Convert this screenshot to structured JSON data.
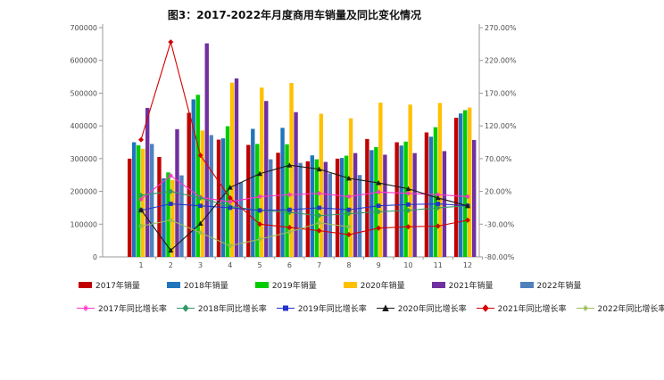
{
  "page": {
    "title": "图3：2017-2022年月度商用车销量及同比变化情况"
  },
  "chart_data": {
    "type": "combo-bar-line",
    "title": "图3：2017-2022年月度商用车销量及同比变化情况",
    "categories": [
      "1",
      "2",
      "3",
      "4",
      "5",
      "6",
      "7",
      "8",
      "9",
      "10",
      "11",
      "12"
    ],
    "left_axis": {
      "min": 0,
      "max": 700000,
      "step": 100000,
      "tick_labels": [
        "0",
        "100000",
        "200000",
        "300000",
        "400000",
        "500000",
        "600000",
        "700000"
      ]
    },
    "right_axis": {
      "min": -80,
      "max": 270,
      "step": 50,
      "tick_labels": [
        "-80.00%",
        "-30.00%",
        "20.00%",
        "70.00%",
        "120.00%",
        "170.00%",
        "220.00%",
        "270.00%"
      ]
    },
    "grid": "off",
    "legend_position": "bottom",
    "bar_series": [
      {
        "name": "2017年销量",
        "color": "#C00000",
        "values": [
          300000,
          305000,
          440000,
          358000,
          342000,
          318000,
          292000,
          300000,
          360000,
          350000,
          380000,
          425000
        ]
      },
      {
        "name": "2018年销量",
        "color": "#2076BC",
        "values": [
          350000,
          240000,
          481000,
          362000,
          391000,
          394000,
          310000,
          302000,
          326000,
          340000,
          367000,
          438000
        ]
      },
      {
        "name": "2019年销量",
        "color": "#00CC00",
        "values": [
          341000,
          258000,
          495000,
          399000,
          345000,
          344000,
          298000,
          309000,
          335000,
          352000,
          396000,
          448000
        ]
      },
      {
        "name": "2020年销量",
        "color": "#FFC000",
        "values": [
          330000,
          235000,
          386000,
          532000,
          517000,
          531000,
          437000,
          423000,
          471000,
          465000,
          470000,
          456000
        ]
      },
      {
        "name": "2021年销量",
        "color": "#7030A0",
        "values": [
          455000,
          390000,
          652000,
          545000,
          476000,
          442000,
          290000,
          317000,
          312000,
          317000,
          323000,
          357000
        ]
      },
      {
        "name": "2022年销量",
        "color": "#4F81BD",
        "values": [
          345000,
          249000,
          372000,
          228000,
          298000,
          287000,
          255000,
          250000,
          null,
          null,
          null,
          null
        ]
      }
    ],
    "line_series": [
      {
        "name": "2017年同比增长率",
        "color": "#FF33CC",
        "marker": "star",
        "values": [
          8,
          44,
          11,
          4,
          12,
          15,
          17,
          12,
          19,
          17,
          15,
          12
        ]
      },
      {
        "name": "2018年同比增长率",
        "color": "#339966",
        "marker": "diamond",
        "values": [
          14,
          20,
          10,
          -3,
          -9,
          -12,
          -17,
          -14,
          -11,
          -9,
          -5,
          -2
        ]
      },
      {
        "name": "2019年同比增长率",
        "color": "#2233CC",
        "marker": "square",
        "values": [
          -9,
          1,
          -2,
          -5,
          -9,
          -8,
          -5,
          -8,
          -2,
          0,
          1,
          -2
        ]
      },
      {
        "name": "2020年同比增长率",
        "color": "#1A1A1A",
        "marker": "triangle",
        "values": [
          -8,
          -70,
          -29,
          26,
          47,
          60,
          54,
          40,
          33,
          24,
          10,
          -2
        ]
      },
      {
        "name": "2021年同比增长率",
        "color": "#D40000",
        "marker": "diamond",
        "values": [
          99,
          248,
          75,
          10,
          -30,
          -35,
          -40,
          -46,
          -36,
          -34,
          -33,
          -24
        ]
      },
      {
        "name": "2022年同比增长率",
        "color": "#9BBB59",
        "marker": "star",
        "values": [
          -33,
          -24,
          -43,
          -63,
          -53,
          -42,
          -28,
          -34,
          null,
          null,
          null,
          null
        ]
      }
    ]
  }
}
